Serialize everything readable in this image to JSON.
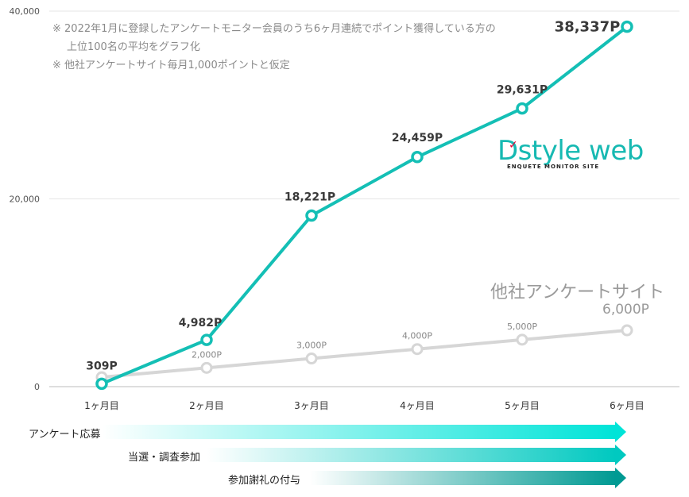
{
  "notes": {
    "line1": "※ 2022年1月に登録したアンケートモニター会員のうち6ヶ月連続でポイント獲得している方の",
    "line2": "上位100名の平均をグラフ化",
    "line3": "※ 他社アンケートサイト毎月1,000ポイントと仮定"
  },
  "logo": {
    "text": "Dstyle web",
    "subtext": "ENQUETE MONITOR SITE"
  },
  "competitor": {
    "name": "他社アンケートサイト",
    "total_label": "6,000P"
  },
  "arrows": [
    {
      "label": "アンケート応募"
    },
    {
      "label": "当選・調査参加"
    },
    {
      "label": "参加謝礼の付与"
    }
  ],
  "chart_data": {
    "type": "line",
    "categories": [
      "1ヶ月目",
      "2ヶ月目",
      "3ヶ月目",
      "4ヶ月目",
      "5ヶ月目",
      "6ヶ月目"
    ],
    "ylim": [
      0,
      40000
    ],
    "yticks": [
      0,
      20000,
      40000
    ],
    "ytick_labels": [
      "0",
      "20,000",
      "40,000"
    ],
    "grid": true,
    "series": [
      {
        "name": "Dstyle web",
        "color": "#14bfb5",
        "values": [
          309,
          4982,
          18221,
          24459,
          29631,
          38337
        ],
        "labels": [
          "309P",
          "4,982P",
          "18,221P",
          "24,459P",
          "29,631P",
          "38,337P"
        ]
      },
      {
        "name": "他社アンケートサイト",
        "color": "#d6d6d6",
        "values": [
          1000,
          2000,
          3000,
          4000,
          5000,
          6000
        ],
        "labels": [
          "",
          "2,000P",
          "3,000P",
          "4,000P",
          "5,000P",
          ""
        ]
      }
    ]
  }
}
